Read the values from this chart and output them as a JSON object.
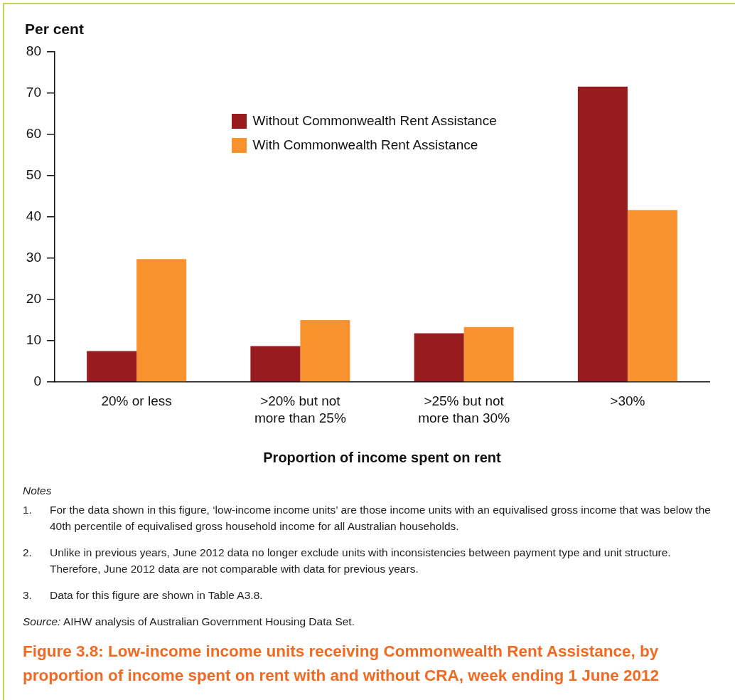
{
  "chart_data": {
    "type": "bar",
    "title": "Figure 3.8: Low-income income units receiving Commonwealth Rent Assistance, by proportion of income spent on rent with and without CRA, week ending 1 June 2012",
    "ylabel": "Per cent",
    "xlabel": "Proportion of income spent on rent",
    "categories": [
      "20% or less",
      ">20% but not more than 25%",
      ">25% but not more than 30%",
      ">30%"
    ],
    "series": [
      {
        "name": "Without Commonwealth Rent Assistance",
        "color": "#981b1e",
        "values": [
          7.5,
          8.7,
          11.8,
          71.6
        ]
      },
      {
        "name": "With Commonwealth Rent Assistance",
        "color": "#f7922d",
        "values": [
          29.8,
          15.0,
          13.3,
          41.7
        ]
      }
    ],
    "ylim": [
      0,
      80
    ],
    "yticks": [
      0,
      10,
      20,
      30,
      40,
      50,
      60,
      70,
      80
    ],
    "grid": false,
    "legend": "top",
    "annotations": [
      "Notes",
      "1. For the data shown in this figure, ‘low-income income units’ are those income units with an equivalised gross income that was below the 40th percentile of equivalised gross household income for all Australian households.",
      "2. Unlike in previous years, June 2012 data no longer exclude units with inconsistencies between payment type and unit structure. Therefore, June 2012 data are not comparable with data for previous years.",
      "3. Data for this figure are shown in Table A3.8.",
      "Source: AIHW analysis of Australian Government Housing Data Set."
    ]
  }
}
